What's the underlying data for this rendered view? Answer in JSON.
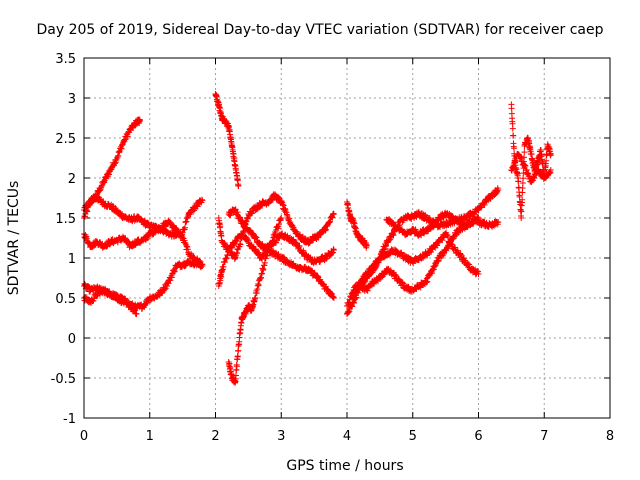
{
  "chart_data": {
    "type": "scatter",
    "title": "Day 205 of 2019, Sidereal Day-to-day VTEC variation (SDTVAR) for receiver caep",
    "xlabel": "GPS time / hours",
    "ylabel": "SDTVAR / TECUs",
    "xlim": [
      0,
      8
    ],
    "ylim": [
      -1,
      3.5
    ],
    "xticks": [
      0,
      1,
      2,
      3,
      4,
      5,
      6,
      7,
      8
    ],
    "xtick_labels": [
      "0",
      "1",
      "2",
      "3",
      "4",
      "5",
      "6",
      "7",
      "8"
    ],
    "yticks": [
      -1,
      -0.5,
      0,
      0.5,
      1,
      1.5,
      2,
      2.5,
      3,
      3.5
    ],
    "ytick_labels": [
      "-1",
      "-0.5",
      "0",
      "0.5",
      "1",
      "1.5",
      "2",
      "2.5",
      "3",
      "3.5"
    ],
    "grid": true,
    "marker": "+",
    "color": "#ff0000",
    "series": [
      {
        "name": "s1",
        "x": [
          0.0,
          0.1,
          0.2,
          0.3,
          0.4,
          0.5,
          0.6,
          0.7,
          0.8,
          0.85
        ],
        "y": [
          1.5,
          1.7,
          1.8,
          1.95,
          2.1,
          2.25,
          2.45,
          2.6,
          2.7,
          2.72
        ]
      },
      {
        "name": "s2",
        "x": [
          0.0,
          0.1,
          0.2,
          0.3,
          0.4,
          0.5,
          0.6,
          0.7,
          0.8,
          0.9,
          1.0,
          1.1,
          1.2,
          1.3,
          1.4,
          1.5,
          1.6,
          1.7,
          1.8
        ],
        "y": [
          1.6,
          1.72,
          1.75,
          1.68,
          1.65,
          1.58,
          1.52,
          1.48,
          1.5,
          1.45,
          1.4,
          1.38,
          1.35,
          1.3,
          1.28,
          1.32,
          1.55,
          1.65,
          1.72
        ]
      },
      {
        "name": "s3",
        "x": [
          0.0,
          0.1,
          0.2,
          0.3,
          0.4,
          0.5,
          0.6,
          0.7,
          0.8,
          0.9,
          1.0,
          1.1,
          1.2,
          1.3,
          1.4,
          1.5,
          1.6,
          1.7,
          1.8
        ],
        "y": [
          1.3,
          1.15,
          1.2,
          1.15,
          1.2,
          1.22,
          1.25,
          1.15,
          1.2,
          1.22,
          1.3,
          1.35,
          1.4,
          1.45,
          1.35,
          1.25,
          1.05,
          0.98,
          0.92
        ]
      },
      {
        "name": "s4",
        "x": [
          0.0,
          0.1,
          0.2,
          0.3,
          0.4,
          0.5,
          0.6,
          0.7,
          0.8,
          0.9,
          1.0,
          1.1,
          1.2,
          1.3,
          1.4,
          1.5,
          1.6,
          1.7,
          1.8
        ],
        "y": [
          0.65,
          0.6,
          0.62,
          0.58,
          0.55,
          0.52,
          0.48,
          0.42,
          0.38,
          0.4,
          0.5,
          0.52,
          0.6,
          0.72,
          0.9,
          0.92,
          0.95,
          0.93,
          0.9
        ]
      },
      {
        "name": "s5",
        "x": [
          0.0,
          0.1,
          0.2,
          0.3,
          0.4,
          0.5,
          0.6,
          0.7,
          0.8
        ],
        "y": [
          0.5,
          0.45,
          0.55,
          0.6,
          0.55,
          0.5,
          0.45,
          0.4,
          0.3
        ]
      },
      {
        "name": "s6",
        "x": [
          2.0,
          2.05,
          2.1,
          2.15,
          2.2,
          2.25,
          2.3,
          2.35
        ],
        "y": [
          3.05,
          2.9,
          2.75,
          2.7,
          2.65,
          2.4,
          2.15,
          1.9
        ]
      },
      {
        "name": "s7",
        "x": [
          2.2,
          2.25,
          2.3,
          2.35,
          2.4,
          2.45,
          2.5,
          2.55,
          2.6,
          2.7,
          2.8,
          2.9,
          3.0
        ],
        "y": [
          -0.3,
          -0.5,
          -0.55,
          -0.1,
          0.25,
          0.3,
          0.4,
          0.35,
          0.5,
          0.8,
          1.1,
          1.3,
          1.5
        ]
      },
      {
        "name": "s8",
        "x": [
          2.05,
          2.1,
          2.2,
          2.3,
          2.4,
          2.5,
          2.6,
          2.7,
          2.8,
          2.9,
          3.0,
          3.1,
          3.2,
          3.3,
          3.4,
          3.5,
          3.6,
          3.7,
          3.8
        ],
        "y": [
          1.5,
          1.2,
          1.1,
          1.0,
          1.25,
          1.55,
          1.62,
          1.68,
          1.7,
          1.78,
          1.7,
          1.5,
          1.35,
          1.25,
          1.2,
          1.25,
          1.3,
          1.4,
          1.55
        ]
      },
      {
        "name": "s9",
        "x": [
          2.05,
          2.1,
          2.2,
          2.3,
          2.4,
          2.5,
          2.6,
          2.7,
          2.8,
          2.9,
          3.0,
          3.1,
          3.2,
          3.3,
          3.4,
          3.5,
          3.6,
          3.7,
          3.8
        ],
        "y": [
          0.65,
          0.85,
          1.1,
          1.2,
          1.3,
          1.2,
          1.1,
          1.0,
          1.15,
          1.2,
          1.3,
          1.25,
          1.2,
          1.1,
          1.0,
          0.95,
          0.98,
          1.02,
          1.1
        ]
      },
      {
        "name": "s10",
        "x": [
          2.2,
          2.3,
          2.4,
          2.5,
          2.6,
          2.7,
          2.8,
          2.9,
          3.0,
          3.1,
          3.2,
          3.3,
          3.4,
          3.5,
          3.6,
          3.7,
          3.8
        ],
        "y": [
          1.55,
          1.6,
          1.45,
          1.35,
          1.25,
          1.15,
          1.1,
          1.05,
          1.0,
          0.95,
          0.9,
          0.88,
          0.85,
          0.8,
          0.7,
          0.6,
          0.5
        ]
      },
      {
        "name": "s11",
        "x": [
          4.0,
          4.05,
          4.1,
          4.15,
          4.2,
          4.25,
          4.3
        ],
        "y": [
          1.7,
          1.5,
          1.45,
          1.3,
          1.25,
          1.2,
          1.15
        ]
      },
      {
        "name": "s12",
        "x": [
          4.0,
          4.1,
          4.2,
          4.3,
          4.4,
          4.5,
          4.6,
          4.7,
          4.8,
          4.9,
          5.0,
          5.1,
          5.2,
          5.3,
          5.4,
          5.5,
          5.6,
          5.7,
          5.8,
          5.9,
          6.0
        ],
        "y": [
          0.4,
          0.6,
          0.7,
          0.8,
          0.9,
          1.0,
          1.05,
          1.1,
          1.05,
          1.0,
          0.95,
          1.0,
          1.05,
          1.12,
          1.2,
          1.3,
          1.15,
          1.05,
          0.95,
          0.85,
          0.8
        ]
      },
      {
        "name": "s13",
        "x": [
          4.0,
          4.1,
          4.2,
          4.3,
          4.4,
          4.5,
          4.6,
          4.7,
          4.8,
          4.9,
          5.0,
          5.1,
          5.2,
          5.3,
          5.4,
          5.5,
          5.6,
          5.7,
          5.8,
          5.9,
          6.0,
          6.1,
          6.2,
          6.3
        ],
        "y": [
          0.3,
          0.45,
          0.65,
          0.75,
          0.85,
          1.0,
          1.2,
          1.3,
          1.45,
          1.5,
          1.52,
          1.55,
          1.5,
          1.45,
          1.4,
          1.42,
          1.45,
          1.48,
          1.5,
          1.55,
          1.6,
          1.7,
          1.78,
          1.85
        ]
      },
      {
        "name": "s14",
        "x": [
          4.1,
          4.2,
          4.3,
          4.4,
          4.5,
          4.6,
          4.7,
          4.8,
          4.9,
          5.0,
          5.1,
          5.2,
          5.3,
          5.4,
          5.5,
          5.6,
          5.7,
          5.8,
          5.9,
          6.0,
          6.1,
          6.2,
          6.3
        ],
        "y": [
          0.55,
          0.65,
          0.6,
          0.7,
          0.75,
          0.85,
          0.8,
          0.7,
          0.62,
          0.6,
          0.65,
          0.7,
          0.85,
          1.0,
          1.1,
          1.25,
          1.35,
          1.4,
          1.45,
          1.45,
          1.42,
          1.4,
          1.45
        ]
      },
      {
        "name": "s15",
        "x": [
          4.6,
          4.7,
          4.8,
          4.9,
          5.0,
          5.1,
          5.2,
          5.3,
          5.4,
          5.5,
          5.6,
          5.7,
          5.8,
          5.9,
          6.0
        ],
        "y": [
          1.48,
          1.42,
          1.35,
          1.3,
          1.35,
          1.3,
          1.35,
          1.4,
          1.5,
          1.55,
          1.5,
          1.45,
          1.4,
          1.45,
          1.5
        ]
      },
      {
        "name": "s16",
        "x": [
          6.5,
          6.55,
          6.6,
          6.65,
          6.7,
          6.75,
          6.8,
          6.85,
          6.9,
          6.95,
          7.0,
          7.05,
          7.1
        ],
        "y": [
          2.92,
          2.2,
          2.0,
          1.5,
          2.4,
          2.5,
          2.3,
          2.1,
          2.2,
          2.35,
          2.0,
          2.4,
          2.3
        ]
      },
      {
        "name": "s17",
        "x": [
          6.5,
          6.6,
          6.7,
          6.8,
          6.9,
          7.0,
          7.1
        ],
        "y": [
          2.1,
          2.3,
          2.15,
          1.95,
          2.1,
          2.0,
          2.1
        ]
      }
    ]
  }
}
